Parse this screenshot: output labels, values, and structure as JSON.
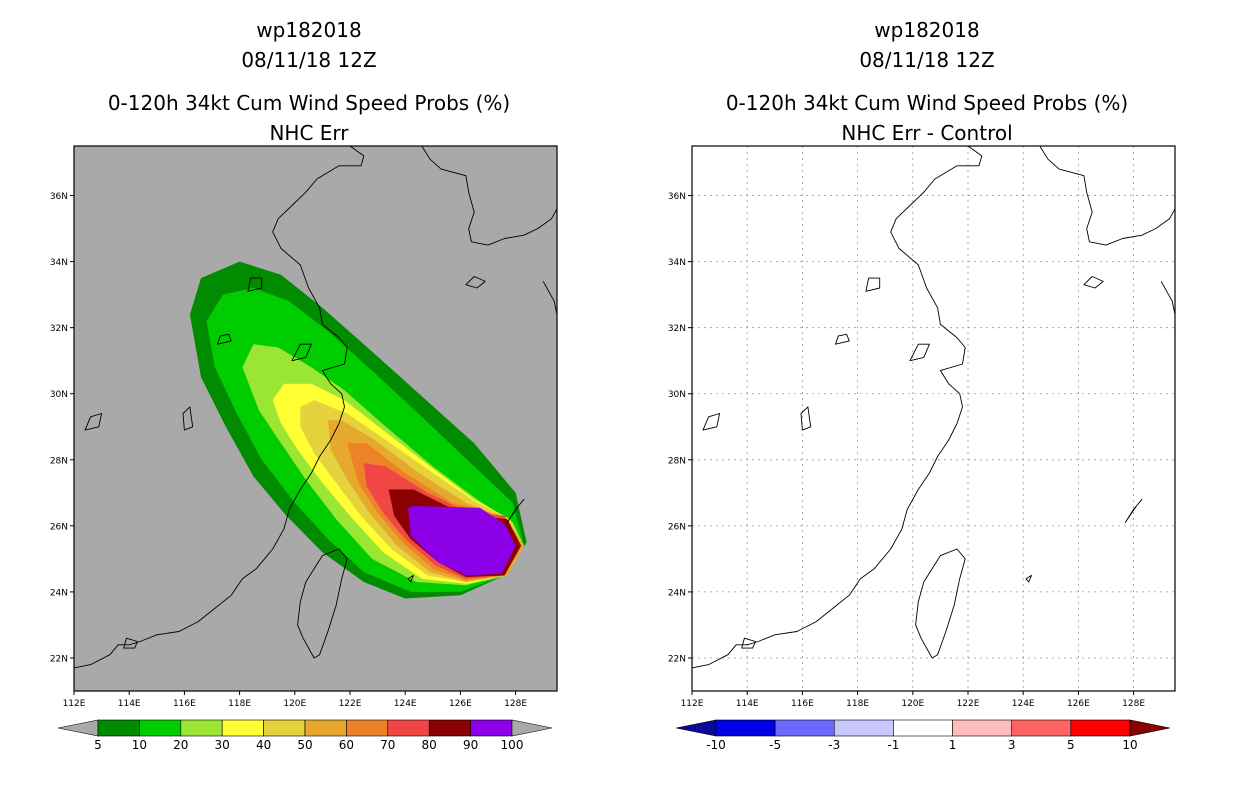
{
  "panels": [
    {
      "id": "left",
      "title_line1": "wp182018",
      "title_line2": "08/11/18 12Z",
      "title_line3": "0-120h 34kt Cum Wind Speed Probs (%)",
      "title_line4": "NHC Err",
      "background": "#a9a9a9",
      "colorbar": {
        "colors": [
          "#008b00",
          "#00cd00",
          "#9ae632",
          "#ffff33",
          "#e6d23c",
          "#e6a82d",
          "#ee8228",
          "#f04646",
          "#8b0000",
          "#8b00e6"
        ],
        "labels": [
          "5",
          "10",
          "20",
          "30",
          "40",
          "50",
          "60",
          "70",
          "80",
          "90",
          "100"
        ],
        "under_color": "#a9a9a9",
        "over_color": "#a9a9a9"
      }
    },
    {
      "id": "right",
      "title_line1": "wp182018",
      "title_line2": "08/11/18 12Z",
      "title_line3": "0-120h 34kt Cum Wind Speed Probs (%)",
      "title_line4": "NHC Err - Control",
      "background": "#ffffff",
      "colorbar": {
        "colors": [
          "#0000e6",
          "#6a6aff",
          "#c8c8ff",
          "#ffffff",
          "#ffbebe",
          "#ff6464",
          "#ff0000"
        ],
        "labels": [
          "-10",
          "-5",
          "-3",
          "-1",
          "1",
          "3",
          "5",
          "10"
        ],
        "under_color": "#0a0a9a",
        "over_color": "#8b0000"
      }
    }
  ],
  "map": {
    "lon_range": [
      112,
      129.5
    ],
    "lat_range": [
      21,
      37.5
    ],
    "lon_ticks": [
      "112E",
      "114E",
      "116E",
      "118E",
      "120E",
      "122E",
      "124E",
      "126E",
      "128E"
    ],
    "lat_ticks": [
      "22N",
      "24N",
      "26N",
      "28N",
      "30N",
      "32N",
      "34N",
      "36N"
    ],
    "lon_tick_values": [
      112,
      114,
      116,
      118,
      120,
      122,
      124,
      126,
      128
    ],
    "lat_tick_values": [
      22,
      24,
      26,
      28,
      30,
      32,
      34,
      36
    ]
  },
  "probability_contours": [
    {
      "level": 5,
      "color": "#008b00",
      "lonlat": [
        [
          116.2,
          32.4
        ],
        [
          116.6,
          33.5
        ],
        [
          118.0,
          34.0
        ],
        [
          119.5,
          33.6
        ],
        [
          121.0,
          32.6
        ],
        [
          122.5,
          31.5
        ],
        [
          124.5,
          30.0
        ],
        [
          126.5,
          28.5
        ],
        [
          128.0,
          27.0
        ],
        [
          128.4,
          25.5
        ],
        [
          127.6,
          24.5
        ],
        [
          126.0,
          23.9
        ],
        [
          124.0,
          23.8
        ],
        [
          122.5,
          24.3
        ],
        [
          121.0,
          25.2
        ],
        [
          119.7,
          26.3
        ],
        [
          118.5,
          27.5
        ],
        [
          117.5,
          29.0
        ],
        [
          116.6,
          30.5
        ],
        [
          116.2,
          32.4
        ]
      ]
    },
    {
      "level": 10,
      "color": "#00cd00",
      "lonlat": [
        [
          116.8,
          32.2
        ],
        [
          117.4,
          33.0
        ],
        [
          118.5,
          33.2
        ],
        [
          119.8,
          32.8
        ],
        [
          121.2,
          31.9
        ],
        [
          122.8,
          30.7
        ],
        [
          124.6,
          29.3
        ],
        [
          126.5,
          27.8
        ],
        [
          127.9,
          26.7
        ],
        [
          128.3,
          25.4
        ],
        [
          127.6,
          24.5
        ],
        [
          126.0,
          24.0
        ],
        [
          124.2,
          24.0
        ],
        [
          122.5,
          24.6
        ],
        [
          121.2,
          25.6
        ],
        [
          120.0,
          26.7
        ],
        [
          118.8,
          28.0
        ],
        [
          117.9,
          29.4
        ],
        [
          117.1,
          30.8
        ],
        [
          116.8,
          32.2
        ]
      ]
    },
    {
      "level": 20,
      "color": "#9ae632",
      "lonlat": [
        [
          118.1,
          30.8
        ],
        [
          118.5,
          31.5
        ],
        [
          119.4,
          31.4
        ],
        [
          120.6,
          30.8
        ],
        [
          121.8,
          30.1
        ],
        [
          123.3,
          29.0
        ],
        [
          125.0,
          27.8
        ],
        [
          126.6,
          26.8
        ],
        [
          127.9,
          26.1
        ],
        [
          128.3,
          25.4
        ],
        [
          127.7,
          24.5
        ],
        [
          126.2,
          24.2
        ],
        [
          124.4,
          24.3
        ],
        [
          122.8,
          25.0
        ],
        [
          121.5,
          26.2
        ],
        [
          120.4,
          27.4
        ],
        [
          119.5,
          28.5
        ],
        [
          118.7,
          29.5
        ],
        [
          118.1,
          30.8
        ]
      ]
    },
    {
      "level": 30,
      "color": "#ffff33",
      "lonlat": [
        [
          119.2,
          29.8
        ],
        [
          119.6,
          30.3
        ],
        [
          120.6,
          30.3
        ],
        [
          121.8,
          29.8
        ],
        [
          123.2,
          28.9
        ],
        [
          124.9,
          27.8
        ],
        [
          126.5,
          26.8
        ],
        [
          127.8,
          26.2
        ],
        [
          128.3,
          25.4
        ],
        [
          127.7,
          24.5
        ],
        [
          126.2,
          24.25
        ],
        [
          124.6,
          24.4
        ],
        [
          123.2,
          25.2
        ],
        [
          122.0,
          26.3
        ],
        [
          121.0,
          27.3
        ],
        [
          120.1,
          28.3
        ],
        [
          119.5,
          29.1
        ],
        [
          119.2,
          29.8
        ]
      ]
    },
    {
      "level": 40,
      "color": "#e6d23c",
      "lonlat": [
        [
          120.2,
          29.6
        ],
        [
          120.7,
          29.8
        ],
        [
          121.9,
          29.4
        ],
        [
          123.3,
          28.6
        ],
        [
          125.0,
          27.6
        ],
        [
          126.6,
          26.7
        ],
        [
          127.8,
          26.2
        ],
        [
          128.3,
          25.4
        ],
        [
          127.7,
          24.5
        ],
        [
          126.2,
          24.3
        ],
        [
          124.8,
          24.5
        ],
        [
          123.5,
          25.3
        ],
        [
          122.4,
          26.3
        ],
        [
          121.5,
          27.3
        ],
        [
          120.7,
          28.2
        ],
        [
          120.2,
          29.0
        ],
        [
          120.2,
          29.6
        ]
      ]
    },
    {
      "level": 50,
      "color": "#e6a82d",
      "lonlat": [
        [
          121.2,
          29.2
        ],
        [
          121.7,
          29.2
        ],
        [
          122.9,
          28.6
        ],
        [
          124.5,
          27.6
        ],
        [
          126.2,
          26.7
        ],
        [
          127.7,
          26.2
        ],
        [
          128.3,
          25.4
        ],
        [
          127.7,
          24.5
        ],
        [
          126.2,
          24.3
        ],
        [
          124.9,
          24.6
        ],
        [
          123.7,
          25.4
        ],
        [
          122.7,
          26.4
        ],
        [
          121.9,
          27.4
        ],
        [
          121.3,
          28.3
        ],
        [
          121.2,
          29.2
        ]
      ]
    },
    {
      "level": 60,
      "color": "#ee8228",
      "lonlat": [
        [
          121.9,
          28.5
        ],
        [
          122.6,
          28.5
        ],
        [
          124.0,
          27.6
        ],
        [
          125.7,
          26.7
        ],
        [
          127.5,
          26.3
        ],
        [
          128.2,
          25.4
        ],
        [
          127.6,
          24.5
        ],
        [
          126.2,
          24.35
        ],
        [
          125.0,
          24.7
        ],
        [
          123.9,
          25.5
        ],
        [
          123.0,
          26.4
        ],
        [
          122.3,
          27.3
        ],
        [
          121.9,
          28.5
        ]
      ]
    },
    {
      "level": 70,
      "color": "#f04646",
      "lonlat": [
        [
          122.5,
          27.9
        ],
        [
          123.3,
          27.8
        ],
        [
          124.8,
          27.0
        ],
        [
          126.3,
          26.4
        ],
        [
          127.6,
          26.3
        ],
        [
          128.2,
          25.4
        ],
        [
          127.6,
          24.5
        ],
        [
          126.2,
          24.4
        ],
        [
          125.1,
          24.8
        ],
        [
          124.0,
          25.6
        ],
        [
          123.2,
          26.4
        ],
        [
          122.6,
          27.2
        ],
        [
          122.5,
          27.9
        ]
      ]
    },
    {
      "level": 80,
      "color": "#8b0000",
      "lonlat": [
        [
          123.4,
          27.1
        ],
        [
          124.3,
          27.1
        ],
        [
          125.5,
          26.6
        ],
        [
          126.7,
          26.3
        ],
        [
          127.7,
          26.2
        ],
        [
          128.2,
          25.4
        ],
        [
          127.6,
          24.5
        ],
        [
          126.2,
          24.45
        ],
        [
          125.2,
          24.9
        ],
        [
          124.2,
          25.6
        ],
        [
          123.6,
          26.3
        ],
        [
          123.4,
          27.1
        ]
      ]
    },
    {
      "level": 90,
      "color": "#8b00e6",
      "lonlat": [
        [
          124.1,
          26.55
        ],
        [
          124.3,
          26.6
        ],
        [
          126.7,
          26.55
        ],
        [
          127.6,
          26.05
        ],
        [
          128.0,
          25.4
        ],
        [
          127.5,
          24.55
        ],
        [
          126.2,
          24.5
        ],
        [
          125.2,
          24.9
        ],
        [
          124.2,
          25.7
        ],
        [
          124.1,
          26.55
        ]
      ]
    }
  ],
  "coastlines": [
    {
      "name": "china-coast",
      "closed": false,
      "lonlat": [
        [
          112.0,
          21.7
        ],
        [
          112.6,
          21.8
        ],
        [
          113.3,
          22.1
        ],
        [
          113.6,
          22.4
        ],
        [
          114.0,
          22.4
        ],
        [
          114.4,
          22.5
        ],
        [
          115.0,
          22.7
        ],
        [
          115.8,
          22.8
        ],
        [
          116.5,
          23.1
        ],
        [
          117.1,
          23.5
        ],
        [
          117.7,
          23.9
        ],
        [
          118.1,
          24.4
        ],
        [
          118.6,
          24.7
        ],
        [
          119.2,
          25.3
        ],
        [
          119.6,
          25.9
        ],
        [
          119.8,
          26.5
        ],
        [
          120.2,
          27.1
        ],
        [
          120.6,
          27.6
        ],
        [
          120.9,
          28.1
        ],
        [
          121.3,
          28.6
        ],
        [
          121.6,
          29.1
        ],
        [
          121.8,
          29.6
        ],
        [
          121.7,
          30.0
        ],
        [
          121.3,
          30.3
        ],
        [
          121.0,
          30.7
        ],
        [
          121.8,
          30.9
        ],
        [
          121.9,
          31.4
        ],
        [
          121.6,
          31.7
        ],
        [
          121.0,
          32.1
        ],
        [
          120.9,
          32.6
        ],
        [
          120.5,
          33.2
        ],
        [
          120.2,
          33.9
        ],
        [
          119.5,
          34.4
        ],
        [
          119.2,
          34.9
        ],
        [
          119.4,
          35.3
        ],
        [
          119.9,
          35.7
        ],
        [
          120.4,
          36.1
        ],
        [
          120.8,
          36.5
        ],
        [
          121.6,
          36.9
        ],
        [
          122.4,
          36.9
        ],
        [
          122.5,
          37.2
        ],
        [
          122.0,
          37.5
        ]
      ]
    },
    {
      "name": "korea-coast",
      "closed": false,
      "lonlat": [
        [
          124.6,
          37.5
        ],
        [
          124.9,
          37.1
        ],
        [
          125.3,
          36.8
        ],
        [
          126.2,
          36.6
        ],
        [
          126.3,
          36.1
        ],
        [
          126.5,
          35.5
        ],
        [
          126.3,
          35.0
        ],
        [
          126.4,
          34.6
        ],
        [
          127.0,
          34.5
        ],
        [
          127.6,
          34.7
        ],
        [
          128.3,
          34.8
        ],
        [
          128.8,
          35.0
        ],
        [
          129.3,
          35.3
        ],
        [
          129.5,
          35.6
        ]
      ]
    },
    {
      "name": "taiwan",
      "closed": true,
      "lonlat": [
        [
          121.0,
          25.1
        ],
        [
          121.6,
          25.3
        ],
        [
          121.9,
          25.0
        ],
        [
          121.7,
          24.4
        ],
        [
          121.5,
          23.6
        ],
        [
          121.2,
          22.8
        ],
        [
          120.9,
          22.1
        ],
        [
          120.7,
          22.0
        ],
        [
          120.3,
          22.6
        ],
        [
          120.1,
          23.0
        ],
        [
          120.2,
          23.7
        ],
        [
          120.4,
          24.3
        ],
        [
          120.7,
          24.7
        ],
        [
          121.0,
          25.1
        ]
      ]
    },
    {
      "name": "hainan-fragment",
      "closed": true,
      "lonlat": [
        [
          113.8,
          22.3
        ],
        [
          114.2,
          22.3
        ],
        [
          114.3,
          22.5
        ],
        [
          113.9,
          22.6
        ],
        [
          113.8,
          22.3
        ]
      ]
    },
    {
      "name": "jeju",
      "closed": true,
      "lonlat": [
        [
          126.2,
          33.3
        ],
        [
          126.6,
          33.2
        ],
        [
          126.9,
          33.4
        ],
        [
          126.5,
          33.55
        ],
        [
          126.2,
          33.3
        ]
      ]
    },
    {
      "name": "ryukyu-1",
      "closed": true,
      "lonlat": [
        [
          127.7,
          26.1
        ],
        [
          128.0,
          26.5
        ],
        [
          128.3,
          26.8
        ],
        [
          128.1,
          26.6
        ],
        [
          127.7,
          26.1
        ]
      ]
    },
    {
      "name": "ryukyu-2",
      "closed": true,
      "lonlat": [
        [
          124.1,
          24.4
        ],
        [
          124.3,
          24.5
        ],
        [
          124.2,
          24.3
        ],
        [
          124.1,
          24.4
        ]
      ]
    },
    {
      "name": "kyushu-edge",
      "closed": false,
      "lonlat": [
        [
          129.0,
          33.4
        ],
        [
          129.4,
          32.8
        ],
        [
          129.5,
          32.4
        ]
      ]
    },
    {
      "name": "taihu-lake",
      "closed": true,
      "lonlat": [
        [
          119.9,
          31.0
        ],
        [
          120.4,
          31.1
        ],
        [
          120.6,
          31.5
        ],
        [
          120.2,
          31.5
        ],
        [
          119.9,
          31.0
        ]
      ]
    },
    {
      "name": "poyang-lake",
      "closed": true,
      "lonlat": [
        [
          116.0,
          28.9
        ],
        [
          116.3,
          29.0
        ],
        [
          116.2,
          29.6
        ],
        [
          115.95,
          29.4
        ],
        [
          116.0,
          28.9
        ]
      ]
    },
    {
      "name": "dongting-lake",
      "closed": true,
      "lonlat": [
        [
          112.4,
          28.9
        ],
        [
          112.9,
          29.0
        ],
        [
          113.0,
          29.4
        ],
        [
          112.6,
          29.3
        ],
        [
          112.4,
          28.9
        ]
      ]
    },
    {
      "name": "hongze-lake",
      "closed": true,
      "lonlat": [
        [
          118.3,
          33.1
        ],
        [
          118.8,
          33.2
        ],
        [
          118.8,
          33.5
        ],
        [
          118.4,
          33.5
        ],
        [
          118.3,
          33.1
        ]
      ]
    },
    {
      "name": "chaohu-lake",
      "closed": true,
      "lonlat": [
        [
          117.2,
          31.5
        ],
        [
          117.7,
          31.6
        ],
        [
          117.6,
          31.8
        ],
        [
          117.3,
          31.75
        ],
        [
          117.2,
          31.5
        ]
      ]
    }
  ]
}
